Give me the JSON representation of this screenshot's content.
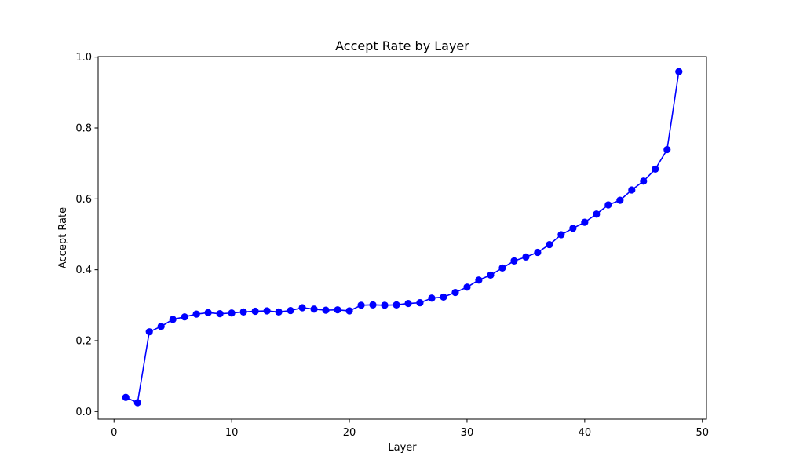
{
  "chart_data": {
    "type": "line",
    "title": "Accept Rate by Layer",
    "xlabel": "Layer",
    "ylabel": "Accept Rate",
    "xlim": [
      -1.35,
      50.35
    ],
    "ylim": [
      -0.0215,
      1.0015
    ],
    "xticks": [
      0,
      10,
      20,
      30,
      40,
      50
    ],
    "xtick_labels": [
      "0",
      "10",
      "20",
      "30",
      "40",
      "50"
    ],
    "yticks": [
      0.0,
      0.2,
      0.4,
      0.6,
      0.8,
      1.0
    ],
    "ytick_labels": [
      "0.0",
      "0.2",
      "0.4",
      "0.6",
      "0.8",
      "1.0"
    ],
    "grid": false,
    "series": [
      {
        "color": "#0000ff",
        "marker": "circle",
        "x": [
          1,
          2,
          3,
          4,
          5,
          6,
          7,
          8,
          9,
          10,
          11,
          12,
          13,
          14,
          15,
          16,
          17,
          18,
          19,
          20,
          21,
          22,
          23,
          24,
          25,
          26,
          27,
          28,
          29,
          30,
          31,
          32,
          33,
          34,
          35,
          36,
          37,
          38,
          39,
          40,
          41,
          42,
          43,
          44,
          45,
          46,
          47,
          48
        ],
        "y": [
          0.04,
          0.025,
          0.225,
          0.24,
          0.26,
          0.267,
          0.275,
          0.279,
          0.276,
          0.278,
          0.281,
          0.283,
          0.284,
          0.281,
          0.285,
          0.293,
          0.289,
          0.286,
          0.287,
          0.284,
          0.3,
          0.301,
          0.3,
          0.301,
          0.305,
          0.307,
          0.32,
          0.323,
          0.336,
          0.351,
          0.371,
          0.385,
          0.405,
          0.425,
          0.436,
          0.449,
          0.471,
          0.499,
          0.517,
          0.534,
          0.557,
          0.583,
          0.596,
          0.625,
          0.65,
          0.684,
          0.739,
          0.959
        ]
      }
    ]
  }
}
